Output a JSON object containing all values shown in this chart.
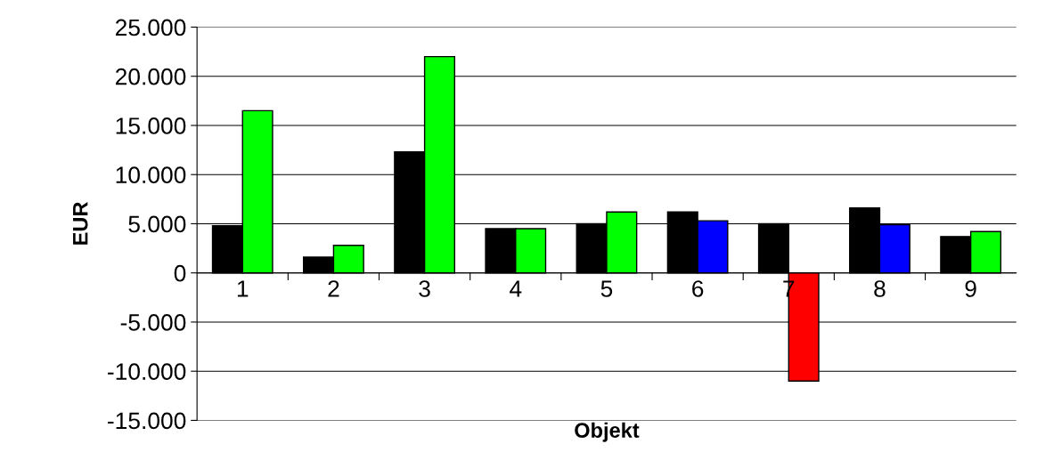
{
  "chart_data": {
    "type": "bar",
    "xlabel": "Objekt",
    "ylabel": "EUR",
    "categories": [
      "1",
      "2",
      "3",
      "4",
      "5",
      "6",
      "7",
      "8",
      "9"
    ],
    "series": [
      {
        "color": "#000000",
        "values": [
          4800,
          1600,
          12300,
          4500,
          5000,
          6200,
          5000,
          6600,
          3700
        ]
      },
      {
        "colors": [
          "#00ff00",
          "#00ff00",
          "#00ff00",
          "#00ff00",
          "#00ff00",
          "#0000ff",
          "#ff0000",
          "#0000ff",
          "#00ff00"
        ],
        "values": [
          16500,
          2800,
          22000,
          4500,
          6200,
          5300,
          -11000,
          4900,
          4200
        ]
      }
    ],
    "ylim": [
      -15000,
      25000
    ],
    "yticks": [
      {
        "value": -15000,
        "label": "-15.000"
      },
      {
        "value": -10000,
        "label": "-10.000"
      },
      {
        "value": -5000,
        "label": "-5.000"
      },
      0,
      {
        "value": 5000,
        "label": "5.000"
      },
      {
        "value": 10000,
        "label": "10.000"
      },
      {
        "value": 15000,
        "label": "15.000"
      },
      {
        "value": 20000,
        "label": "20.000"
      },
      {
        "value": 25000,
        "label": "25.000"
      }
    ],
    "grid": "y",
    "legend": false
  }
}
